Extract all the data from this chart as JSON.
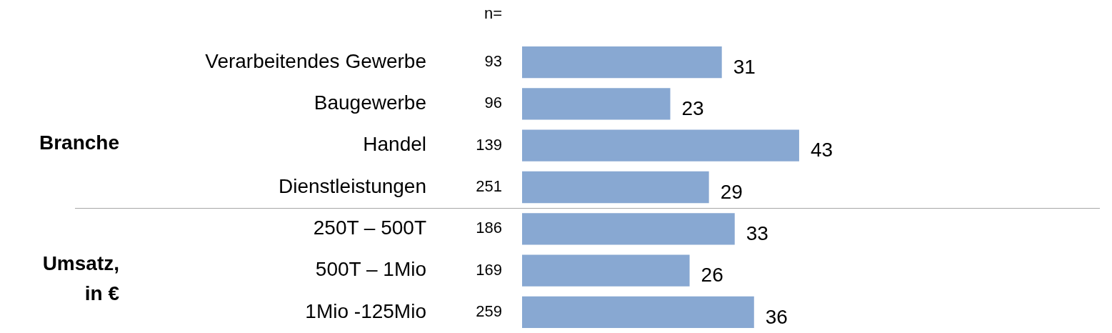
{
  "chart_data": {
    "type": "bar",
    "orientation": "horizontal",
    "categories": [
      "Verarbeitendes Gewerbe",
      "Baugewerbe",
      "Handel",
      "Dienstleistungen",
      "250T – 500T",
      "500T – 1Mio",
      "1Mio -125Mio"
    ],
    "values": [
      31,
      23,
      43,
      29,
      33,
      26,
      36
    ],
    "color": "#88a8d2",
    "data_labels": true,
    "grid": false,
    "legend": false,
    "annotations": [
      "n=",
      "93",
      "96",
      "139",
      "251",
      "186",
      "169",
      "259",
      "Branche",
      "Umsatz,\nin €"
    ]
  }
}
